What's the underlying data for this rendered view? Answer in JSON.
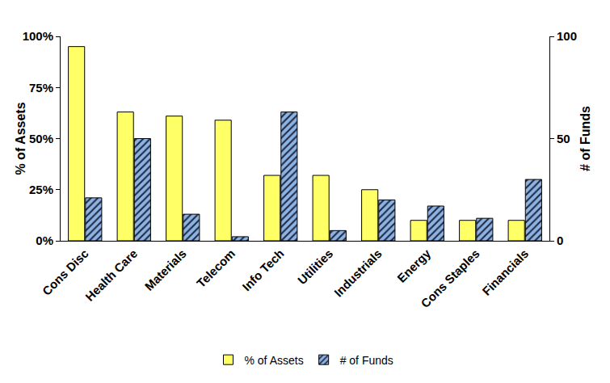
{
  "chart_data": {
    "type": "bar",
    "categories": [
      "Cons Disc",
      "Health Care",
      "Materials",
      "Telecom",
      "Info Tech",
      "Utilities",
      "Industrials",
      "Energy",
      "Cons Staples",
      "Financials"
    ],
    "series": [
      {
        "name": "% of Assets",
        "color": "#ffff66",
        "values": [
          95,
          63,
          61,
          59,
          32,
          32,
          25,
          10,
          10,
          10
        ]
      },
      {
        "name": "# of Funds",
        "color": "#8db3e2",
        "axis": "y2",
        "values": [
          21,
          50,
          13,
          2,
          63,
          5,
          20,
          17,
          11,
          30
        ]
      }
    ],
    "y_label": "% of Assets",
    "y2_label": "# of Funds",
    "ylim": [
      0,
      100
    ],
    "yticks": [
      {
        "value": 0,
        "label": "0%"
      },
      {
        "value": 25,
        "label": "25%"
      },
      {
        "value": 50,
        "label": "50%"
      },
      {
        "value": 75,
        "label": "75%"
      },
      {
        "value": 100,
        "label": "100%"
      }
    ],
    "y2lim": [
      0,
      100
    ],
    "y2ticks": [
      0,
      50,
      100
    ],
    "grid": false,
    "legend": "bottom"
  }
}
